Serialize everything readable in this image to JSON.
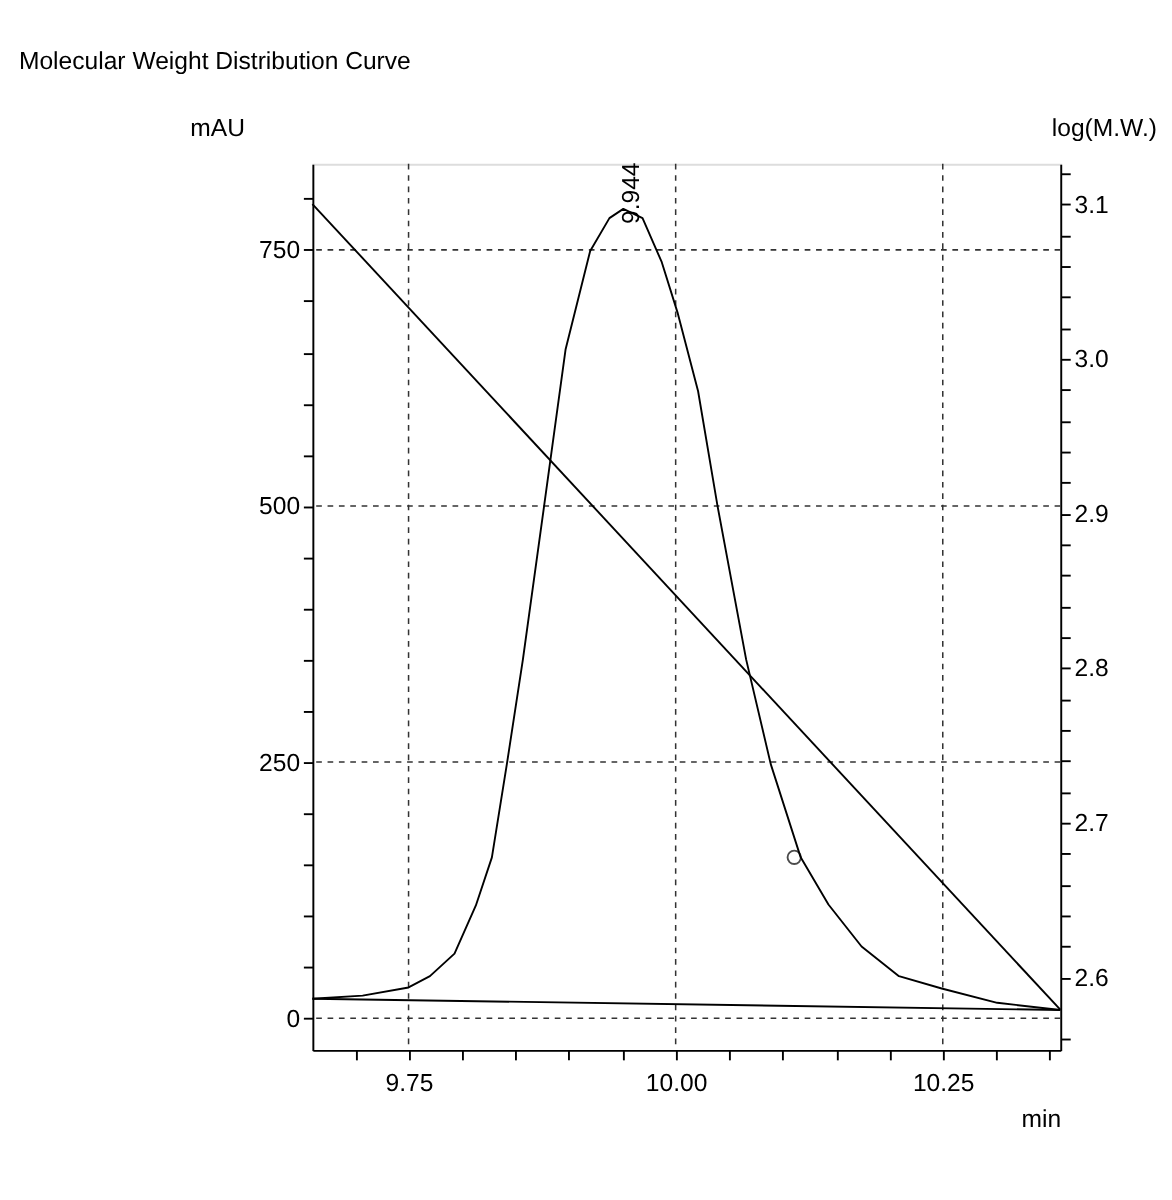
{
  "chart_data": {
    "type": "line",
    "title": "Molecular Weight Distribution Curve",
    "xlabel": "min",
    "ylabel": "mAU",
    "y2label": "log(M.W.)",
    "xlim": [
      9.66,
      10.36
    ],
    "ylim": [
      -31,
      834
    ],
    "y2lim": [
      2.553,
      3.126
    ],
    "xticks": [
      {
        "value": 9.7,
        "label": null
      },
      {
        "value": 9.75,
        "label": "9.75"
      },
      {
        "value": 9.8,
        "label": null
      },
      {
        "value": 9.85,
        "label": null
      },
      {
        "value": 9.9,
        "label": null
      },
      {
        "value": 9.95,
        "label": null
      },
      {
        "value": 10,
        "label": "10.00"
      },
      {
        "value": 10.05,
        "label": null
      },
      {
        "value": 10.1,
        "label": null
      },
      {
        "value": 10.15,
        "label": null
      },
      {
        "value": 10.2,
        "label": null
      },
      {
        "value": 10.25,
        "label": "10.25"
      },
      {
        "value": 10.3,
        "label": null
      },
      {
        "value": 10.35,
        "label": null
      }
    ],
    "yticks": [
      0,
      {
        "value": 50,
        "label": null
      },
      {
        "value": 100,
        "label": null
      },
      {
        "value": 150,
        "label": null
      },
      {
        "value": 200,
        "label": null
      },
      250,
      {
        "value": 300,
        "label": null
      },
      {
        "value": 350,
        "label": null
      },
      {
        "value": 400,
        "label": null
      },
      {
        "value": 450,
        "label": null
      },
      500,
      {
        "value": 550,
        "label": null
      },
      {
        "value": 600,
        "label": null
      },
      {
        "value": 650,
        "label": null
      },
      {
        "value": 700,
        "label": null
      },
      750,
      {
        "value": 800,
        "label": null
      }
    ],
    "y2ticks": [
      {
        "value": 2.56,
        "label": null
      },
      2.6,
      {
        "value": 2.62,
        "label": null
      },
      {
        "value": 2.64,
        "label": null
      },
      {
        "value": 2.66,
        "label": null
      },
      {
        "value": 2.68,
        "label": null
      },
      2.7,
      {
        "value": 2.72,
        "label": null
      },
      {
        "value": 2.74,
        "label": null
      },
      {
        "value": 2.76,
        "label": null
      },
      {
        "value": 2.78,
        "label": null
      },
      2.8,
      {
        "value": 2.82,
        "label": null
      },
      {
        "value": 2.84,
        "label": null
      },
      {
        "value": 2.86,
        "label": null
      },
      {
        "value": 2.88,
        "label": null
      },
      2.9,
      {
        "value": 2.92,
        "label": null
      },
      {
        "value": 2.94,
        "label": null
      },
      {
        "value": 2.96,
        "label": null
      },
      {
        "value": 2.98,
        "label": null
      },
      {
        "value": 3,
        "label": "3.0"
      },
      {
        "value": 3.02,
        "label": null
      },
      {
        "value": 3.04,
        "label": null
      },
      {
        "value": 3.06,
        "label": null
      },
      {
        "value": 3.08,
        "label": null
      },
      3.1,
      {
        "value": 3.12,
        "label": null
      }
    ],
    "grid": true,
    "annotations": [
      {
        "text": "9.944",
        "x": 9.944,
        "y": 790
      }
    ],
    "series": [
      {
        "color": "#000000",
        "x": [
          9.66,
          9.707,
          9.75,
          9.77,
          9.793,
          9.813,
          9.828,
          9.842,
          9.857,
          9.877,
          9.897,
          9.92,
          9.938,
          9.951,
          9.969,
          9.987,
          10.002,
          10.021,
          10.039,
          10.066,
          10.089,
          10.117,
          10.143,
          10.174,
          10.209,
          10.249,
          10.301,
          10.36
        ],
        "values": [
          19,
          22,
          30,
          41,
          63,
          110,
          157,
          248,
          350,
          501,
          653,
          749,
          781,
          790,
          781,
          738,
          688,
          612,
          501,
          350,
          248,
          157,
          111,
          70,
          41,
          29,
          15,
          8
        ]
      },
      {
        "color": "#000000",
        "x": [
          9.66,
          10.36
        ],
        "values": [
          19,
          8
        ]
      },
      {
        "color": "#000000",
        "axis": "y2",
        "x": [
          9.66,
          10.36
        ],
        "values": [
          3.1,
          2.579
        ]
      },
      {
        "type": "scatter",
        "marker": "circle",
        "color": "#000000",
        "x": [
          10.111
        ],
        "values": [
          157
        ]
      }
    ]
  }
}
